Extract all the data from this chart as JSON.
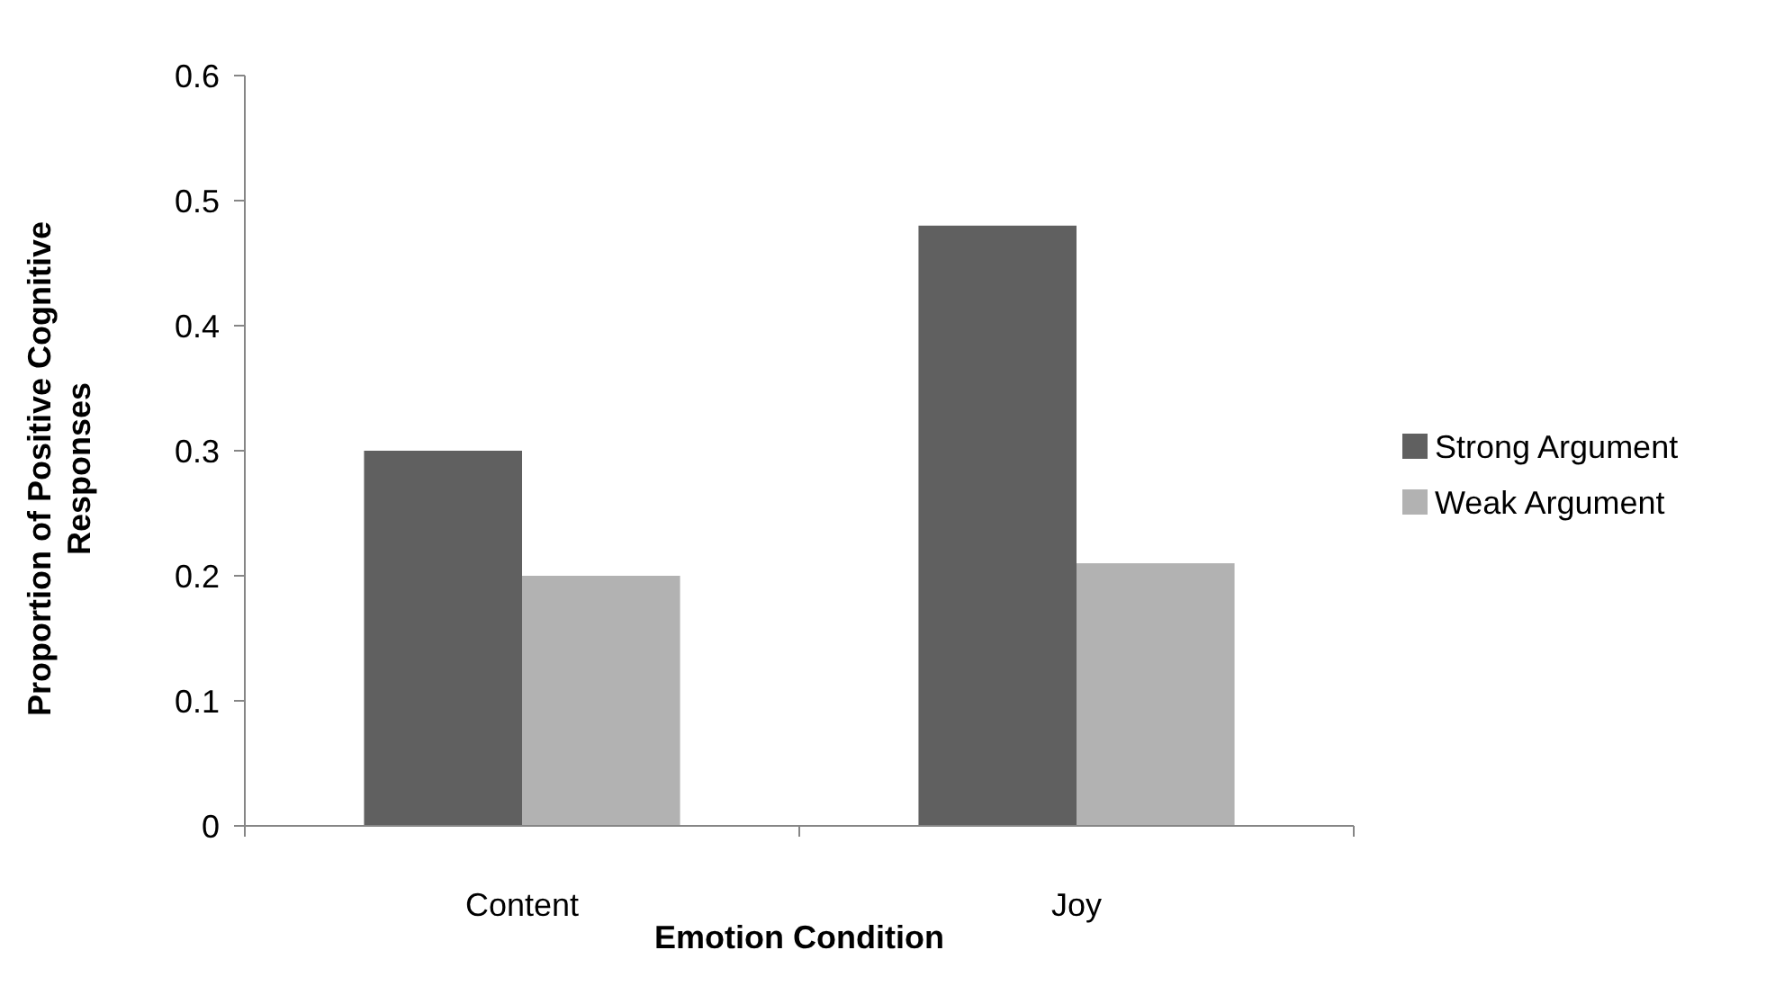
{
  "chart_data": {
    "type": "bar",
    "xlabel": "Emotion Condition",
    "ylabel": "Proportion of Positive Cognitive\nResponses",
    "categories": [
      "Content",
      "Joy"
    ],
    "series": [
      {
        "name": "Strong Argument",
        "color": "#606060",
        "values": [
          0.3,
          0.48
        ]
      },
      {
        "name": "Weak Argument",
        "color": "#b2b2b2",
        "values": [
          0.2,
          0.21
        ]
      }
    ],
    "ylim": [
      0,
      0.6
    ],
    "yticks": [
      0,
      0.1,
      0.2,
      0.3,
      0.4,
      0.5,
      0.6
    ],
    "grid": false,
    "legend": "right"
  }
}
